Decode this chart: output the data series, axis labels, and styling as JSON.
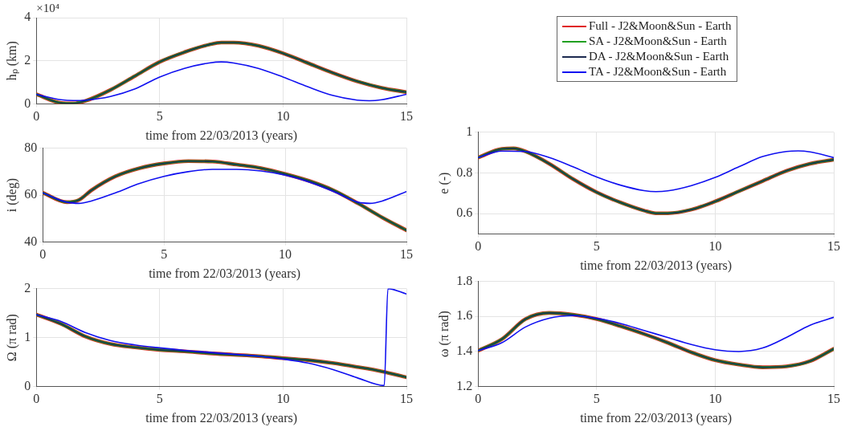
{
  "chart_data": [
    {
      "type": "line",
      "ylabel": "hₚ (km)",
      "xlabel": "time from 22/03/2013 (years)",
      "annotations": [
        "×10⁴"
      ],
      "xlim": [
        0,
        15
      ],
      "xticks": [
        0,
        5,
        10,
        15
      ],
      "ylim": [
        0,
        4
      ],
      "yticks": [
        0,
        2,
        4
      ],
      "grid": true,
      "legend": "right",
      "line_style": "solid",
      "marker": "none",
      "series": [
        {
          "name": "Full - J2&Moon&Sun - Earth",
          "color": "#e02020",
          "x": [
            0,
            1,
            1.5,
            2,
            3,
            4,
            5,
            6,
            7,
            7.5,
            8,
            9,
            10,
            11,
            12,
            13,
            14,
            15
          ],
          "values": [
            0.45,
            0.05,
            0.03,
            0.15,
            0.65,
            1.3,
            1.95,
            2.4,
            2.75,
            2.85,
            2.85,
            2.7,
            2.35,
            1.9,
            1.45,
            1.05,
            0.75,
            0.55
          ]
        },
        {
          "name": "SA - J2&Moon&Sun - Earth",
          "color": "#20a020",
          "x": [
            0,
            1,
            1.5,
            2,
            3,
            4,
            5,
            6,
            7,
            7.5,
            8,
            9,
            10,
            11,
            12,
            13,
            14,
            15
          ],
          "values": [
            0.45,
            0.05,
            0.03,
            0.15,
            0.65,
            1.3,
            1.95,
            2.4,
            2.75,
            2.85,
            2.85,
            2.7,
            2.35,
            1.9,
            1.45,
            1.05,
            0.75,
            0.55
          ]
        },
        {
          "name": "DA - J2&Moon&Sun - Earth",
          "color": "#1c2a50",
          "x": [
            0,
            1,
            1.5,
            2,
            3,
            4,
            5,
            6,
            7,
            7.5,
            8,
            9,
            10,
            11,
            12,
            13,
            14,
            15
          ],
          "values": [
            0.45,
            0.05,
            0.03,
            0.15,
            0.65,
            1.3,
            1.95,
            2.4,
            2.75,
            2.85,
            2.85,
            2.7,
            2.35,
            1.9,
            1.45,
            1.05,
            0.75,
            0.55
          ]
        },
        {
          "name": "TA - J2&Moon&Sun - Earth",
          "color": "#1010f0",
          "x": [
            0,
            1,
            1.5,
            2,
            3,
            4,
            5,
            6,
            7,
            7.5,
            8,
            9,
            10,
            11,
            12,
            13,
            13.5,
            14,
            15
          ],
          "values": [
            0.45,
            0.2,
            0.16,
            0.18,
            0.35,
            0.7,
            1.25,
            1.65,
            1.9,
            1.95,
            1.9,
            1.65,
            1.25,
            0.8,
            0.4,
            0.18,
            0.15,
            0.2,
            0.45
          ]
        }
      ]
    },
    {
      "type": "line",
      "ylabel": "i (deg)",
      "xlabel": "time from 22/03/2013 (years)",
      "xlim": [
        0,
        15
      ],
      "xticks": [
        0,
        5,
        10,
        15
      ],
      "ylim": [
        40,
        80
      ],
      "yticks": [
        40,
        60,
        80
      ],
      "grid": true,
      "line_style": "solid",
      "marker": "none",
      "series": [
        {
          "color": "#e02020",
          "x": [
            0,
            1,
            1.5,
            2,
            3,
            4,
            5,
            6,
            7,
            8,
            9,
            10,
            11,
            12,
            13,
            14,
            15
          ],
          "values": [
            61,
            57,
            58,
            62,
            68,
            71.5,
            73.5,
            74.5,
            74.3,
            73,
            71.5,
            69,
            66,
            62,
            56.5,
            50.5,
            45
          ]
        },
        {
          "color": "#20a020",
          "x": [
            0,
            1,
            1.5,
            2,
            3,
            4,
            5,
            6,
            7,
            8,
            9,
            10,
            11,
            12,
            13,
            14,
            15
          ],
          "values": [
            61,
            57,
            58,
            62,
            68,
            71.5,
            73.5,
            74.5,
            74.3,
            73,
            71.5,
            69,
            66,
            62,
            56.5,
            50.5,
            45
          ]
        },
        {
          "color": "#1c2a50",
          "x": [
            0,
            1,
            1.5,
            2,
            3,
            4,
            5,
            6,
            7,
            8,
            9,
            10,
            11,
            12,
            13,
            14,
            15
          ],
          "values": [
            61,
            57,
            58,
            62,
            68,
            71.5,
            73.5,
            74.5,
            74.3,
            73,
            71.5,
            69,
            66,
            62,
            56.5,
            50.5,
            45
          ]
        },
        {
          "color": "#1010f0",
          "x": [
            0,
            1,
            1.5,
            2,
            3,
            4,
            5,
            6,
            7,
            8,
            9,
            10,
            11,
            12,
            13,
            13.5,
            14,
            15
          ],
          "values": [
            61,
            57,
            56.5,
            57.5,
            61,
            65,
            68,
            70,
            71,
            71,
            70.3,
            68.5,
            65.5,
            61.5,
            57,
            56.5,
            57.5,
            61.5
          ]
        }
      ]
    },
    {
      "type": "line",
      "ylabel": "Ω (π rad)",
      "xlabel": "time from 22/03/2013 (years)",
      "xlim": [
        0,
        15
      ],
      "xticks": [
        0,
        5,
        10,
        15
      ],
      "ylim": [
        0,
        2
      ],
      "yticks": [
        0,
        1,
        2
      ],
      "grid": true,
      "line_style": "solid",
      "marker": "none",
      "series": [
        {
          "color": "#e02020",
          "x": [
            0,
            1,
            2,
            3,
            4,
            5,
            6,
            7,
            8,
            9,
            10,
            11,
            12,
            13,
            14,
            15
          ],
          "values": [
            1.47,
            1.28,
            1.02,
            0.87,
            0.8,
            0.75,
            0.72,
            0.68,
            0.65,
            0.62,
            0.58,
            0.54,
            0.48,
            0.4,
            0.31,
            0.19
          ]
        },
        {
          "color": "#20a020",
          "x": [
            0,
            1,
            2,
            3,
            4,
            5,
            6,
            7,
            8,
            9,
            10,
            11,
            12,
            13,
            14,
            15
          ],
          "values": [
            1.47,
            1.28,
            1.02,
            0.87,
            0.8,
            0.75,
            0.72,
            0.68,
            0.65,
            0.62,
            0.58,
            0.54,
            0.48,
            0.4,
            0.31,
            0.19
          ]
        },
        {
          "color": "#1c2a50",
          "x": [
            0,
            1,
            2,
            3,
            4,
            5,
            6,
            7,
            8,
            9,
            10,
            11,
            12,
            13,
            14,
            15
          ],
          "values": [
            1.47,
            1.28,
            1.02,
            0.87,
            0.8,
            0.75,
            0.72,
            0.68,
            0.65,
            0.62,
            0.58,
            0.54,
            0.48,
            0.4,
            0.31,
            0.19
          ]
        },
        {
          "color": "#1010f0",
          "x": [
            0,
            1,
            2,
            3,
            4,
            5,
            6,
            7,
            8,
            9,
            10,
            11,
            12,
            13,
            14.1,
            14.25,
            15
          ],
          "values": [
            1.47,
            1.33,
            1.1,
            0.94,
            0.85,
            0.79,
            0.74,
            0.7,
            0.66,
            0.62,
            0.56,
            0.48,
            0.35,
            0.18,
            0.02,
            2,
            1.89
          ]
        }
      ]
    },
    {
      "type": "line",
      "ylabel": "e (-)",
      "xlabel": "time from 22/03/2013 (years)",
      "xlim": [
        0,
        15
      ],
      "xticks": [
        0,
        5,
        10,
        15
      ],
      "ylim": [
        0.5,
        1
      ],
      "yticks": [
        0.6,
        0.8,
        1
      ],
      "grid": true,
      "line_style": "solid",
      "marker": "none",
      "series": [
        {
          "color": "#e02020",
          "x": [
            0,
            1,
            1.5,
            2,
            3,
            4,
            5,
            6,
            7,
            7.5,
            8,
            9,
            10,
            11,
            12,
            13,
            14,
            15
          ],
          "values": [
            0.875,
            0.918,
            0.92,
            0.905,
            0.845,
            0.77,
            0.705,
            0.655,
            0.615,
            0.602,
            0.602,
            0.62,
            0.66,
            0.71,
            0.76,
            0.81,
            0.845,
            0.865
          ]
        },
        {
          "color": "#20a020",
          "x": [
            0,
            1,
            1.5,
            2,
            3,
            4,
            5,
            6,
            7,
            7.5,
            8,
            9,
            10,
            11,
            12,
            13,
            14,
            15
          ],
          "values": [
            0.875,
            0.918,
            0.92,
            0.905,
            0.845,
            0.77,
            0.705,
            0.655,
            0.615,
            0.602,
            0.602,
            0.62,
            0.66,
            0.71,
            0.76,
            0.81,
            0.845,
            0.865
          ]
        },
        {
          "color": "#1c2a50",
          "x": [
            0,
            1,
            1.5,
            2,
            3,
            4,
            5,
            6,
            7,
            7.5,
            8,
            9,
            10,
            11,
            12,
            13,
            14,
            15
          ],
          "values": [
            0.875,
            0.918,
            0.92,
            0.905,
            0.845,
            0.77,
            0.705,
            0.655,
            0.615,
            0.602,
            0.602,
            0.62,
            0.66,
            0.71,
            0.76,
            0.81,
            0.845,
            0.865
          ]
        },
        {
          "color": "#1010f0",
          "x": [
            0,
            1,
            2,
            3,
            4,
            5,
            6,
            7,
            7.5,
            8,
            9,
            10,
            11,
            12,
            13,
            13.5,
            14,
            15
          ],
          "values": [
            0.875,
            0.907,
            0.905,
            0.875,
            0.83,
            0.78,
            0.74,
            0.713,
            0.708,
            0.712,
            0.738,
            0.778,
            0.83,
            0.88,
            0.905,
            0.908,
            0.903,
            0.875
          ]
        }
      ]
    },
    {
      "type": "line",
      "ylabel": "ω (π rad)",
      "xlabel": "time from 22/03/2013 (years)",
      "xlim": [
        0,
        15
      ],
      "xticks": [
        0,
        5,
        10,
        15
      ],
      "ylim": [
        1.2,
        1.8
      ],
      "yticks": [
        1.2,
        1.4,
        1.6,
        1.8
      ],
      "grid": true,
      "line_style": "solid",
      "marker": "none",
      "series": [
        {
          "color": "#e02020",
          "x": [
            0,
            1,
            2,
            3,
            4,
            5,
            6,
            7,
            8,
            9,
            10,
            11,
            12,
            13,
            14,
            15
          ],
          "values": [
            1.405,
            1.47,
            1.585,
            1.62,
            1.61,
            1.585,
            1.545,
            1.5,
            1.45,
            1.395,
            1.35,
            1.325,
            1.31,
            1.315,
            1.345,
            1.415
          ]
        },
        {
          "color": "#20a020",
          "x": [
            0,
            1,
            2,
            3,
            4,
            5,
            6,
            7,
            8,
            9,
            10,
            11,
            12,
            13,
            14,
            15
          ],
          "values": [
            1.405,
            1.47,
            1.585,
            1.62,
            1.61,
            1.585,
            1.545,
            1.5,
            1.45,
            1.395,
            1.35,
            1.325,
            1.31,
            1.315,
            1.345,
            1.415
          ]
        },
        {
          "color": "#1c2a50",
          "x": [
            0,
            1,
            2,
            3,
            4,
            5,
            6,
            7,
            8,
            9,
            10,
            11,
            12,
            13,
            14,
            15
          ],
          "values": [
            1.405,
            1.47,
            1.585,
            1.62,
            1.61,
            1.585,
            1.545,
            1.5,
            1.45,
            1.395,
            1.35,
            1.325,
            1.31,
            1.315,
            1.345,
            1.415
          ]
        },
        {
          "color": "#1010f0",
          "x": [
            0,
            1,
            2,
            3,
            4,
            5,
            6,
            7,
            8,
            9,
            10,
            11,
            12,
            13,
            14,
            15
          ],
          "values": [
            1.405,
            1.45,
            1.54,
            1.59,
            1.605,
            1.59,
            1.56,
            1.52,
            1.48,
            1.44,
            1.41,
            1.4,
            1.42,
            1.48,
            1.55,
            1.595
          ]
        }
      ]
    }
  ]
}
